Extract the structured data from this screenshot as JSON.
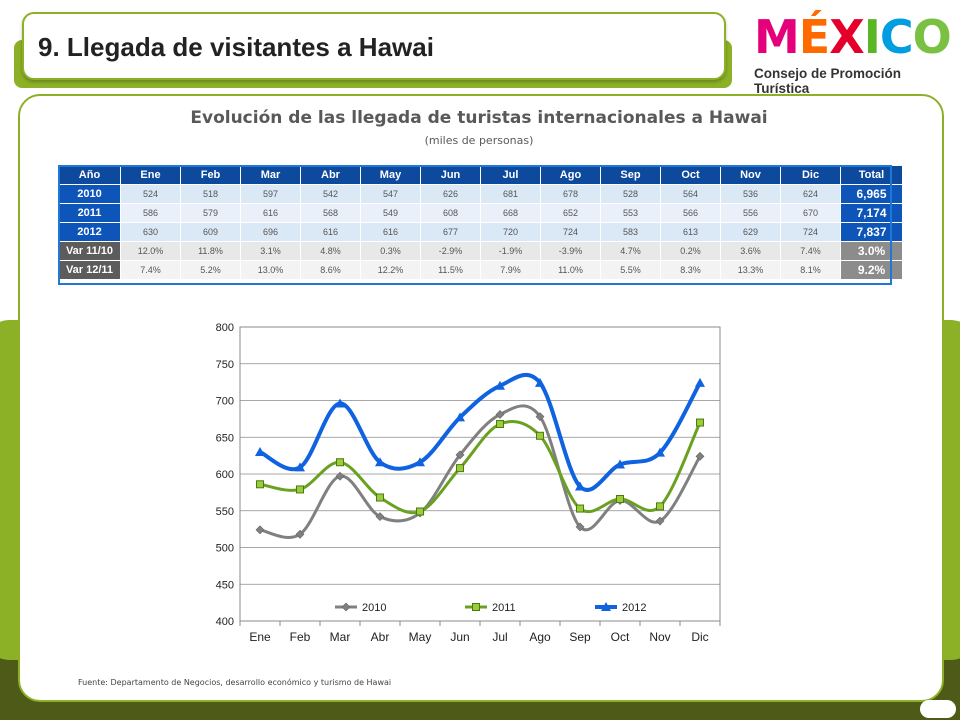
{
  "header": {
    "title": "9. Llegada de visitantes a Hawai"
  },
  "logo": {
    "letters": [
      "M",
      "É",
      "X",
      "I",
      "C",
      "O"
    ],
    "colors": [
      "#e3007a",
      "#ff6a00",
      "#e4002b",
      "#5bb626",
      "#009ee0",
      "#7ac143"
    ],
    "subtitle": "Consejo de Promoción Turística"
  },
  "colors": {
    "brand_green": "#8cb026",
    "table_blue": "#0d55b8",
    "series_2010": "#808080",
    "series_2011": "#6aa121",
    "series_2012": "#0f63e0"
  },
  "table": {
    "headers": [
      "Año",
      "Ene",
      "Feb",
      "Mar",
      "Abr",
      "May",
      "Jun",
      "Jul",
      "Ago",
      "Sep",
      "Oct",
      "Nov",
      "Dic",
      "Total"
    ],
    "rows": [
      {
        "label": "2010",
        "values": [
          "524",
          "518",
          "597",
          "542",
          "547",
          "626",
          "681",
          "678",
          "528",
          "564",
          "536",
          "624"
        ],
        "total": "6,965"
      },
      {
        "label": "2011",
        "values": [
          "586",
          "579",
          "616",
          "568",
          "549",
          "608",
          "668",
          "652",
          "553",
          "566",
          "556",
          "670"
        ],
        "total": "7,174"
      },
      {
        "label": "2012",
        "values": [
          "630",
          "609",
          "696",
          "616",
          "616",
          "677",
          "720",
          "724",
          "583",
          "613",
          "629",
          "724"
        ],
        "total": "7,837"
      },
      {
        "label": "Var 11/10",
        "values": [
          "12.0%",
          "11.8%",
          "3.1%",
          "4.8%",
          "0.3%",
          "-2.9%",
          "-1.9%",
          "-3.9%",
          "4.7%",
          "0.2%",
          "3.6%",
          "7.4%"
        ],
        "total": "3.0%"
      },
      {
        "label": "Var 12/11",
        "values": [
          "7.4%",
          "5.2%",
          "13.0%",
          "8.6%",
          "12.2%",
          "11.5%",
          "7.9%",
          "11.0%",
          "5.5%",
          "8.3%",
          "13.3%",
          "8.1%"
        ],
        "total": "9.2%"
      }
    ]
  },
  "chart_data": {
    "type": "line",
    "title": "Evolución de las llegada de turistas internacionales a Hawai",
    "subtitle": "(miles de personas)",
    "categories": [
      "Ene",
      "Feb",
      "Mar",
      "Abr",
      "May",
      "Jun",
      "Jul",
      "Ago",
      "Sep",
      "Oct",
      "Nov",
      "Dic"
    ],
    "series": [
      {
        "name": "2010",
        "values": [
          524,
          518,
          597,
          542,
          547,
          626,
          681,
          678,
          528,
          564,
          536,
          624
        ],
        "color": "#808080",
        "marker": "diamond"
      },
      {
        "name": "2011",
        "values": [
          586,
          579,
          616,
          568,
          549,
          608,
          668,
          652,
          553,
          566,
          556,
          670
        ],
        "color": "#6aa121",
        "marker": "square"
      },
      {
        "name": "2012",
        "values": [
          630,
          609,
          696,
          616,
          616,
          677,
          720,
          724,
          583,
          613,
          629,
          724
        ],
        "color": "#0f63e0",
        "marker": "triangle"
      }
    ],
    "ylim": [
      400,
      800
    ],
    "yticks": [
      400,
      450,
      500,
      550,
      600,
      650,
      700,
      750,
      800
    ],
    "grid": true,
    "legend": "bottom-inside",
    "smooth": true
  },
  "source": "Fuente: Departamento de Negocios, desarrollo económico y turismo de Hawai"
}
